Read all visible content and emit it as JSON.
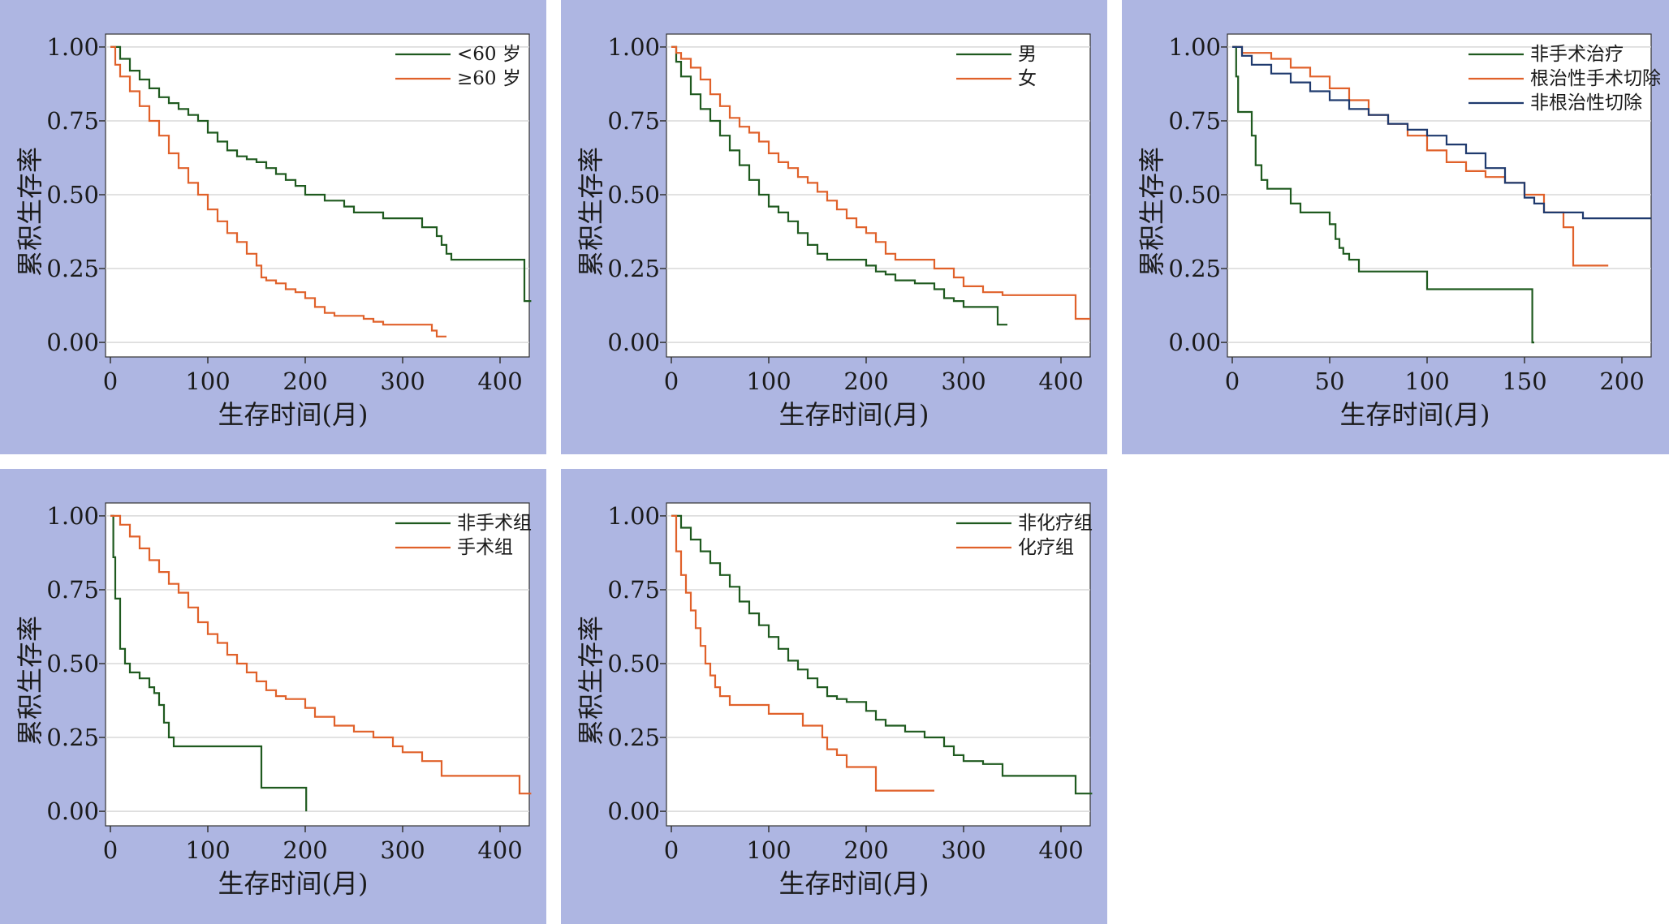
{
  "colors": {
    "panel_bg": "#aeb6e2",
    "plot_bg": "#ffffff",
    "grid": "#d8d8d8",
    "axis": "#333333",
    "green": "#1f5a1f",
    "orange": "#e0612a",
    "navy": "#1f3a6e"
  },
  "chart_data": [
    {
      "type": "line",
      "xlabel": "生存时间(月)",
      "ylabel": "累积生存率",
      "xlim": [
        0,
        430
      ],
      "ylim": [
        0,
        1
      ],
      "xticks": [
        0,
        100,
        200,
        300,
        400
      ],
      "yticks": [
        0,
        0.25,
        0.5,
        0.75,
        1
      ],
      "ytick_labels": [
        "0.00",
        "0.25",
        "0.50",
        "0.75",
        "1.00"
      ],
      "legend_position": "top-right",
      "series": [
        {
          "name": "<60 岁",
          "color": "green",
          "x": [
            0,
            10,
            20,
            30,
            40,
            50,
            60,
            70,
            80,
            90,
            100,
            110,
            120,
            130,
            140,
            150,
            160,
            170,
            180,
            190,
            200,
            210,
            220,
            240,
            250,
            270,
            280,
            300,
            320,
            335,
            340,
            345,
            350,
            360,
            370,
            375,
            400,
            420,
            425,
            432
          ],
          "y": [
            1.0,
            0.96,
            0.92,
            0.89,
            0.86,
            0.83,
            0.81,
            0.79,
            0.77,
            0.75,
            0.71,
            0.68,
            0.65,
            0.63,
            0.62,
            0.61,
            0.59,
            0.57,
            0.55,
            0.53,
            0.5,
            0.5,
            0.48,
            0.46,
            0.44,
            0.44,
            0.42,
            0.42,
            0.39,
            0.36,
            0.33,
            0.3,
            0.28,
            0.28,
            0.28,
            0.28,
            0.28,
            0.28,
            0.14,
            0.14
          ]
        },
        {
          "name": "≥60 岁",
          "color": "orange",
          "x": [
            0,
            5,
            10,
            20,
            30,
            40,
            50,
            60,
            70,
            80,
            90,
            100,
            110,
            120,
            130,
            140,
            150,
            155,
            160,
            170,
            180,
            190,
            200,
            210,
            220,
            230,
            250,
            260,
            270,
            280,
            290,
            300,
            320,
            330,
            335,
            345
          ],
          "y": [
            1.0,
            0.94,
            0.9,
            0.85,
            0.8,
            0.75,
            0.7,
            0.64,
            0.59,
            0.54,
            0.5,
            0.45,
            0.41,
            0.37,
            0.34,
            0.3,
            0.26,
            0.22,
            0.21,
            0.2,
            0.18,
            0.17,
            0.15,
            0.12,
            0.1,
            0.09,
            0.09,
            0.08,
            0.07,
            0.06,
            0.06,
            0.06,
            0.06,
            0.04,
            0.02,
            0.02
          ]
        }
      ]
    },
    {
      "type": "line",
      "xlabel": "生存时间(月)",
      "ylabel": "累积生存率",
      "xlim": [
        0,
        430
      ],
      "ylim": [
        0,
        1
      ],
      "xticks": [
        0,
        100,
        200,
        300,
        400
      ],
      "yticks": [
        0,
        0.25,
        0.5,
        0.75,
        1
      ],
      "ytick_labels": [
        "0.00",
        "0.25",
        "0.50",
        "0.75",
        "1.00"
      ],
      "legend_position": "top-right",
      "series": [
        {
          "name": "男",
          "color": "green",
          "x": [
            0,
            5,
            10,
            20,
            30,
            40,
            50,
            60,
            70,
            80,
            90,
            100,
            110,
            120,
            130,
            140,
            150,
            160,
            170,
            180,
            200,
            210,
            220,
            230,
            250,
            270,
            280,
            290,
            300,
            320,
            335,
            345
          ],
          "y": [
            1.0,
            0.95,
            0.9,
            0.84,
            0.79,
            0.75,
            0.7,
            0.65,
            0.6,
            0.55,
            0.5,
            0.46,
            0.44,
            0.41,
            0.37,
            0.33,
            0.3,
            0.28,
            0.28,
            0.28,
            0.26,
            0.24,
            0.23,
            0.21,
            0.2,
            0.18,
            0.15,
            0.14,
            0.12,
            0.12,
            0.06,
            0.06
          ]
        },
        {
          "name": "女",
          "color": "orange",
          "x": [
            0,
            5,
            10,
            20,
            30,
            40,
            50,
            60,
            70,
            80,
            90,
            100,
            110,
            120,
            130,
            140,
            150,
            160,
            170,
            180,
            190,
            200,
            210,
            220,
            230,
            250,
            270,
            290,
            300,
            320,
            340,
            370,
            400,
            415,
            430
          ],
          "y": [
            1.0,
            0.98,
            0.96,
            0.93,
            0.89,
            0.84,
            0.8,
            0.76,
            0.73,
            0.71,
            0.68,
            0.64,
            0.61,
            0.59,
            0.56,
            0.54,
            0.51,
            0.48,
            0.45,
            0.42,
            0.39,
            0.37,
            0.34,
            0.3,
            0.28,
            0.28,
            0.25,
            0.22,
            0.19,
            0.17,
            0.16,
            0.16,
            0.16,
            0.08,
            0.08
          ]
        }
      ]
    },
    {
      "type": "line",
      "xlabel": "生存时间(月)",
      "ylabel": "累积生存率",
      "xlim": [
        0,
        215
      ],
      "ylim": [
        0,
        1
      ],
      "xticks": [
        0,
        50,
        100,
        150,
        200
      ],
      "yticks": [
        0,
        0.25,
        0.5,
        0.75,
        1
      ],
      "ytick_labels": [
        "0.00",
        "0.25",
        "0.50",
        "0.75",
        "1.00"
      ],
      "legend_position": "top-right",
      "series": [
        {
          "name": "非手术治疗",
          "color": "green",
          "x": [
            0,
            2,
            3,
            5,
            10,
            12,
            15,
            18,
            20,
            30,
            35,
            40,
            50,
            53,
            55,
            57,
            60,
            65,
            70,
            100,
            120,
            150,
            154,
            155
          ],
          "y": [
            1.0,
            0.9,
            0.78,
            0.78,
            0.7,
            0.6,
            0.55,
            0.52,
            0.52,
            0.47,
            0.44,
            0.44,
            0.4,
            0.35,
            0.32,
            0.3,
            0.28,
            0.24,
            0.24,
            0.18,
            0.18,
            0.18,
            0.0,
            0.0
          ]
        },
        {
          "name": "根治性手术切除",
          "color": "orange",
          "x": [
            0,
            5,
            10,
            20,
            30,
            40,
            50,
            60,
            70,
            80,
            90,
            100,
            110,
            120,
            130,
            140,
            150,
            160,
            170,
            175,
            185,
            193
          ],
          "y": [
            1.0,
            0.98,
            0.98,
            0.96,
            0.93,
            0.9,
            0.86,
            0.82,
            0.77,
            0.74,
            0.7,
            0.65,
            0.61,
            0.58,
            0.56,
            0.54,
            0.5,
            0.44,
            0.39,
            0.26,
            0.26,
            0.26
          ]
        },
        {
          "name": "非根治性切除",
          "color": "navy",
          "x": [
            0,
            5,
            10,
            20,
            30,
            40,
            50,
            60,
            70,
            80,
            90,
            100,
            110,
            120,
            130,
            140,
            150,
            155,
            160,
            180,
            200,
            215
          ],
          "y": [
            1.0,
            0.97,
            0.94,
            0.91,
            0.88,
            0.85,
            0.82,
            0.79,
            0.77,
            0.74,
            0.72,
            0.7,
            0.67,
            0.64,
            0.59,
            0.54,
            0.49,
            0.47,
            0.44,
            0.42,
            0.42,
            0.42
          ]
        }
      ]
    },
    {
      "type": "line",
      "xlabel": "生存时间(月)",
      "ylabel": "累积生存率",
      "xlim": [
        0,
        430
      ],
      "ylim": [
        0,
        1
      ],
      "xticks": [
        0,
        100,
        200,
        300,
        400
      ],
      "yticks": [
        0,
        0.25,
        0.5,
        0.75,
        1
      ],
      "ytick_labels": [
        "0.00",
        "0.25",
        "0.50",
        "0.75",
        "1.00"
      ],
      "legend_position": "top-right",
      "series": [
        {
          "name": "非手术组",
          "color": "green",
          "x": [
            0,
            3,
            5,
            10,
            15,
            20,
            30,
            40,
            45,
            50,
            55,
            60,
            65,
            70,
            100,
            150,
            155,
            180,
            200,
            201
          ],
          "y": [
            1.0,
            0.86,
            0.72,
            0.55,
            0.5,
            0.47,
            0.45,
            0.42,
            0.4,
            0.36,
            0.3,
            0.25,
            0.22,
            0.22,
            0.22,
            0.22,
            0.08,
            0.08,
            0.08,
            0.0
          ]
        },
        {
          "name": "手术组",
          "color": "orange",
          "x": [
            0,
            10,
            20,
            30,
            40,
            50,
            60,
            70,
            80,
            90,
            100,
            110,
            120,
            130,
            140,
            150,
            160,
            170,
            180,
            200,
            210,
            230,
            250,
            270,
            290,
            300,
            320,
            340,
            360,
            380,
            400,
            420,
            432
          ],
          "y": [
            1.0,
            0.97,
            0.93,
            0.89,
            0.85,
            0.81,
            0.77,
            0.74,
            0.69,
            0.64,
            0.6,
            0.57,
            0.53,
            0.5,
            0.47,
            0.44,
            0.41,
            0.39,
            0.38,
            0.35,
            0.32,
            0.29,
            0.27,
            0.25,
            0.22,
            0.2,
            0.17,
            0.12,
            0.12,
            0.12,
            0.12,
            0.06,
            0.06
          ]
        }
      ]
    },
    {
      "type": "line",
      "xlabel": "生存时间(月)",
      "ylabel": "累积生存率",
      "xlim": [
        0,
        430
      ],
      "ylim": [
        0,
        1
      ],
      "xticks": [
        0,
        100,
        200,
        300,
        400
      ],
      "yticks": [
        0,
        0.25,
        0.5,
        0.75,
        1
      ],
      "ytick_labels": [
        "0.00",
        "0.25",
        "0.50",
        "0.75",
        "1.00"
      ],
      "legend_position": "top-right",
      "series": [
        {
          "name": "非化疗组",
          "color": "green",
          "x": [
            0,
            10,
            20,
            30,
            40,
            50,
            60,
            70,
            80,
            90,
            100,
            110,
            120,
            130,
            140,
            150,
            160,
            170,
            180,
            200,
            210,
            220,
            240,
            260,
            280,
            290,
            300,
            320,
            340,
            360,
            380,
            400,
            415,
            432
          ],
          "y": [
            1.0,
            0.96,
            0.92,
            0.88,
            0.84,
            0.8,
            0.76,
            0.71,
            0.67,
            0.63,
            0.59,
            0.55,
            0.51,
            0.48,
            0.45,
            0.42,
            0.39,
            0.38,
            0.37,
            0.34,
            0.31,
            0.29,
            0.27,
            0.25,
            0.22,
            0.19,
            0.17,
            0.16,
            0.12,
            0.12,
            0.12,
            0.12,
            0.06,
            0.06
          ]
        },
        {
          "name": "化疗组",
          "color": "orange",
          "x": [
            0,
            5,
            10,
            15,
            20,
            25,
            30,
            35,
            40,
            45,
            50,
            60,
            70,
            90,
            100,
            115,
            135,
            155,
            160,
            170,
            180,
            200,
            210,
            240,
            270
          ],
          "y": [
            1.0,
            0.88,
            0.8,
            0.74,
            0.68,
            0.62,
            0.56,
            0.5,
            0.46,
            0.42,
            0.39,
            0.36,
            0.36,
            0.36,
            0.33,
            0.33,
            0.29,
            0.25,
            0.21,
            0.19,
            0.15,
            0.15,
            0.07,
            0.07,
            0.07
          ]
        }
      ]
    }
  ]
}
